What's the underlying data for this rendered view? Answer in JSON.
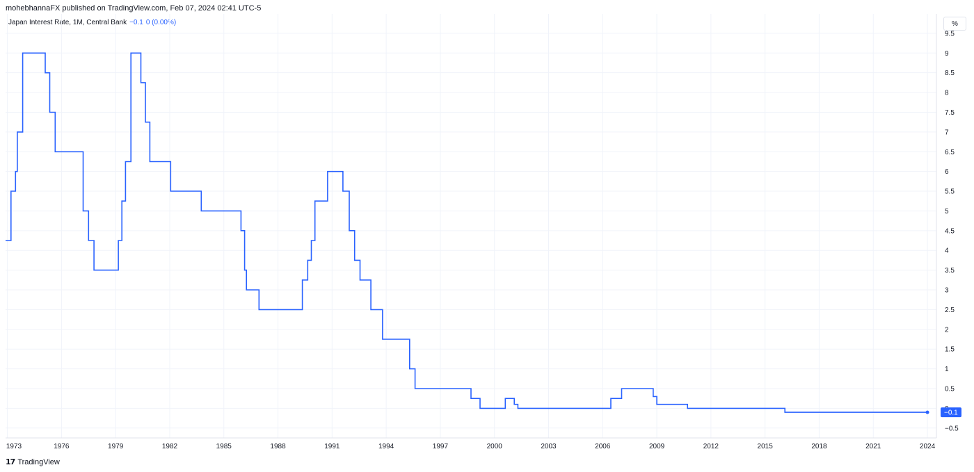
{
  "header": {
    "publish_line": "mohebhannaFX published on TradingView.com, Feb 07, 2024 02:41 UTC-5"
  },
  "legend": {
    "series_label": "Japan Interest Rate, 1M, Central Bank",
    "last_value": "−0.1",
    "change": "0 (0.00%)"
  },
  "price_axis": {
    "unit": "%",
    "last_badge": "−0.1"
  },
  "footer": {
    "brand": "TradingView",
    "brand_icon": "tradingview-logo-icon"
  },
  "colors": {
    "line": "#2962ff",
    "grid": "#f0f3fa",
    "badge": "#2962ff"
  },
  "chart_data": {
    "type": "line",
    "title": "",
    "xlabel": "",
    "ylabel": "",
    "x_ticks": [
      "1973",
      "1976",
      "1979",
      "1982",
      "1985",
      "1988",
      "1991",
      "1994",
      "1997",
      "2000",
      "2003",
      "2006",
      "2009",
      "2012",
      "2015",
      "2018",
      "2021",
      "2024"
    ],
    "y_ticks": [
      "9.5",
      "9",
      "8.5",
      "8",
      "7.5",
      "7",
      "6.5",
      "6",
      "5.5",
      "5",
      "4.5",
      "4",
      "3.5",
      "3",
      "2.5",
      "2",
      "1.5",
      "1",
      "0.5",
      "0",
      "−0.5"
    ],
    "xlim": [
      1972.9,
      2024.5
    ],
    "ylim": [
      -0.75,
      9.85
    ],
    "grid": true,
    "step": true,
    "series": [
      {
        "x": [
          1972.9,
          1973.2,
          1973.45,
          1973.55,
          1973.65,
          1973.85,
          1974.05,
          1975.1,
          1975.35,
          1975.5,
          1975.65,
          1977.2,
          1977.5,
          1977.8,
          1978.2,
          1979.15,
          1979.35,
          1979.55,
          1979.85,
          1980.1,
          1980.4,
          1980.65,
          1980.9,
          1981.15,
          1982.05,
          1983.75,
          1985.95,
          1986.15,
          1986.25,
          1986.95,
          1987.2,
          1989.35,
          1989.65,
          1989.85,
          1990.05,
          1990.75,
          1991.6,
          1991.95,
          1992.25,
          1992.55,
          1993.15,
          1993.8,
          1995.3,
          1995.6,
          1998.7,
          1999.2,
          2000.6,
          2001.1,
          2001.3,
          2006.45,
          2007.05,
          2008.8,
          2009.0,
          2010.7,
          2016.1,
          2024.0
        ],
        "y": [
          4.25,
          5.5,
          6,
          7,
          7,
          9,
          9,
          8.5,
          7.5,
          7.5,
          6.5,
          5,
          4.25,
          3.5,
          3.5,
          4.25,
          5.25,
          6.25,
          9,
          9,
          8.25,
          7.25,
          6.25,
          6.25,
          5.5,
          5,
          4.5,
          3.5,
          3,
          2.5,
          2.5,
          3.25,
          3.75,
          4.25,
          5.25,
          6,
          5.5,
          4.5,
          3.75,
          3.25,
          2.5,
          1.75,
          1,
          0.5,
          0.25,
          0,
          0.25,
          0.1,
          0,
          0.25,
          0.5,
          0.3,
          0.1,
          0,
          -0.1,
          -0.1
        ]
      }
    ]
  }
}
